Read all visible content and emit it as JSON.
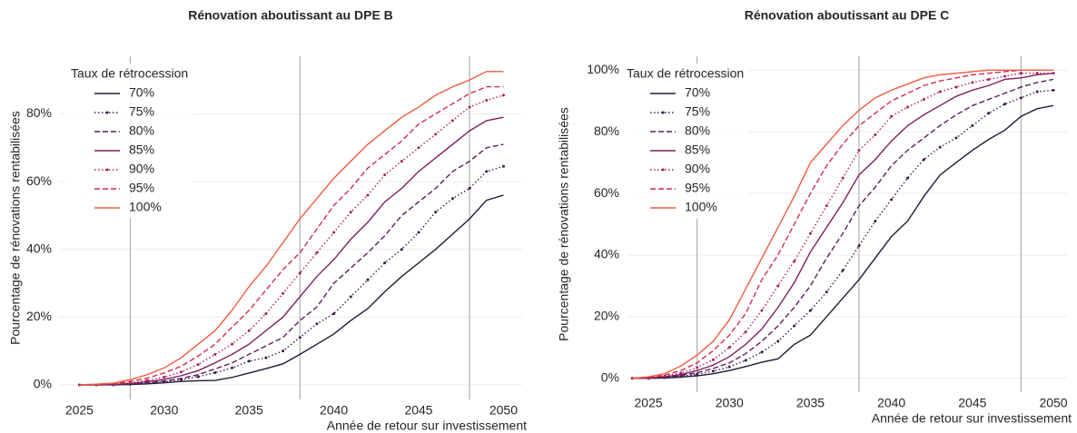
{
  "chart_data": [
    {
      "type": "line",
      "title": "Rénovation aboutissant au DPE B",
      "xlabel": "Année de retour sur investissement",
      "ylabel": "Pourcentage de rénovations rentabilisées",
      "legend_title": "Taux de rétrocession",
      "grid": true,
      "x": [
        2025,
        2026,
        2027,
        2028,
        2029,
        2030,
        2031,
        2032,
        2033,
        2034,
        2035,
        2036,
        2037,
        2038,
        2039,
        2040,
        2041,
        2042,
        2043,
        2044,
        2045,
        2046,
        2047,
        2048,
        2049,
        2050
      ],
      "xlim": [
        2023.8,
        2051.1
      ],
      "ylim": [
        -4.3,
        97
      ],
      "xticks": [
        2025,
        2030,
        2035,
        2040,
        2045,
        2050
      ],
      "yticks": [
        {
          "value": 0,
          "label": "0%"
        },
        {
          "value": 20,
          "label": "20%"
        },
        {
          "value": 40,
          "label": "40%"
        },
        {
          "value": 60,
          "label": "60%"
        },
        {
          "value": 80,
          "label": "80%"
        }
      ],
      "vlines": [
        2028,
        2038,
        2048
      ],
      "series": [
        {
          "name": "70%",
          "color": "#1f1a36",
          "style": "solid",
          "values": [
            0,
            0,
            0,
            0.1,
            0.3,
            0.6,
            1,
            1.2,
            1.3,
            2.2,
            3.5,
            4.8,
            6.2,
            9,
            12,
            15,
            19,
            22.5,
            27.5,
            32,
            36,
            40,
            44.5,
            49,
            54.5,
            56
          ]
        },
        {
          "name": "75%",
          "color": "#3c1c4d",
          "style": "dotted",
          "values": [
            0,
            0,
            0,
            0.2,
            0.5,
            0.9,
            1.5,
            2.4,
            3.6,
            5,
            7,
            8,
            10,
            14,
            18,
            21,
            26,
            31,
            36,
            40,
            45,
            51,
            55,
            58,
            63,
            64.5
          ]
        },
        {
          "name": "80%",
          "color": "#5e1d5a",
          "style": "dashed",
          "values": [
            0,
            0,
            0.1,
            0.3,
            0.6,
            1.1,
            1.9,
            3,
            4.7,
            6.5,
            9,
            11.5,
            14,
            19,
            23,
            30,
            34.5,
            39,
            44,
            50,
            54,
            58,
            63,
            66,
            70,
            71
          ]
        },
        {
          "name": "85%",
          "color": "#7e1e5e",
          "style": "solid",
          "values": [
            0,
            0,
            0.1,
            0.4,
            0.9,
            1.6,
            2.7,
            4.2,
            6.5,
            9,
            12,
            16,
            20,
            26,
            32,
            37,
            43,
            48,
            54,
            58,
            63,
            67,
            71,
            75,
            78,
            79
          ]
        },
        {
          "name": "90%",
          "color": "#a71f5b",
          "style": "dotted",
          "values": [
            0,
            0,
            0.2,
            0.6,
            1.3,
            2.3,
            3.8,
            6,
            9,
            12,
            16,
            21,
            27,
            33,
            39,
            45,
            51,
            56,
            62,
            66,
            70,
            74,
            78,
            82,
            84,
            85.5
          ]
        },
        {
          "name": "95%",
          "color": "#d02d4e",
          "style": "dashed",
          "values": [
            0,
            0.1,
            0.3,
            1,
            2,
            3.5,
            5.5,
            8.5,
            12,
            17,
            22,
            28,
            34,
            39,
            46,
            53,
            58,
            64,
            68,
            72,
            77,
            80,
            83,
            86,
            88,
            88
          ]
        },
        {
          "name": "100%",
          "color": "#ef5b40",
          "style": "solid",
          "values": [
            0,
            0.2,
            0.5,
            1.5,
            3,
            5,
            8,
            12,
            16,
            22,
            29,
            35,
            42,
            49,
            55,
            61,
            66,
            71,
            75,
            79,
            82,
            85.5,
            88,
            90,
            92.5,
            92.5
          ]
        }
      ]
    },
    {
      "type": "line",
      "title": "Rénovation aboutissant au DPE C",
      "xlabel": "Année de retour sur investissement",
      "ylabel": "Pourcentage de rénovations rentabilisées",
      "legend_title": "Taux de rétrocession",
      "grid": true,
      "x": [
        2024,
        2025,
        2026,
        2027,
        2028,
        2029,
        2030,
        2031,
        2032,
        2033,
        2034,
        2035,
        2036,
        2037,
        2038,
        2039,
        2040,
        2041,
        2042,
        2043,
        2044,
        2045,
        2046,
        2047,
        2048,
        2049,
        2050
      ],
      "xlim": [
        2023.65,
        2050.84
      ],
      "ylim": [
        -4.5,
        104.5
      ],
      "xticks": [
        2025,
        2030,
        2035,
        2040,
        2045,
        2050
      ],
      "yticks": [
        {
          "value": 0,
          "label": "0%"
        },
        {
          "value": 20,
          "label": "20%"
        },
        {
          "value": 40,
          "label": "40%"
        },
        {
          "value": 60,
          "label": "60%"
        },
        {
          "value": 80,
          "label": "80%"
        },
        {
          "value": 100,
          "label": "100%"
        }
      ],
      "vlines": [
        2028,
        2038,
        2048
      ],
      "series": [
        {
          "name": "70%",
          "color": "#1f1a36",
          "style": "solid",
          "values": [
            0,
            0,
            0.1,
            0.4,
            0.8,
            1.5,
            2.5,
            3.8,
            5.2,
            6.3,
            11,
            14,
            20,
            26,
            32,
            39,
            46,
            51,
            59,
            66,
            70,
            74,
            77.5,
            80.5,
            85,
            87.5,
            88.5
          ]
        },
        {
          "name": "75%",
          "color": "#3c1c4d",
          "style": "dotted",
          "values": [
            0,
            0,
            0.2,
            0.6,
            1.3,
            2.3,
            3.7,
            5.8,
            8.5,
            12,
            17,
            22,
            28,
            35,
            43,
            51,
            58,
            65,
            71,
            75,
            78,
            82,
            86,
            89,
            91,
            93,
            93.5
          ]
        },
        {
          "name": "80%",
          "color": "#5e1d5a",
          "style": "dashed",
          "values": [
            0,
            0.1,
            0.3,
            0.9,
            1.8,
            3.2,
            5,
            8,
            12,
            17,
            23,
            30,
            39,
            47,
            56,
            62,
            69,
            74,
            78,
            82,
            85.5,
            88.5,
            90.5,
            92.5,
            94.5,
            96,
            97
          ]
        },
        {
          "name": "85%",
          "color": "#7e1e5e",
          "style": "solid",
          "values": [
            0,
            0.1,
            0.5,
            1.2,
            2.5,
            4.3,
            7,
            11,
            16,
            23,
            31,
            41,
            49,
            57,
            66,
            71,
            77,
            82,
            85.5,
            88.5,
            91.5,
            93.5,
            95,
            97,
            97.5,
            98.5,
            99
          ]
        },
        {
          "name": "90%",
          "color": "#a71f5b",
          "style": "dotted",
          "values": [
            0,
            0.2,
            0.7,
            1.7,
            3.5,
            6,
            10,
            15,
            22,
            30,
            38,
            47,
            56,
            65,
            74,
            79,
            85,
            88,
            90.5,
            93,
            94.5,
            96,
            97,
            98,
            99,
            99,
            99
          ]
        },
        {
          "name": "95%",
          "color": "#d02d4e",
          "style": "dashed",
          "values": [
            0,
            0.3,
            1,
            2.5,
            5,
            9,
            14,
            21,
            32,
            40,
            50,
            60,
            69,
            76,
            82,
            86,
            90,
            92.5,
            95,
            96.5,
            97.5,
            98.5,
            99,
            99.5,
            100,
            100,
            100
          ]
        },
        {
          "name": "100%",
          "color": "#ef5b40",
          "style": "solid",
          "values": [
            0,
            0.5,
            1.5,
            4,
            7.5,
            12,
            19,
            29,
            39,
            49,
            59,
            70,
            76,
            82,
            87,
            91,
            93.5,
            95.5,
            97.5,
            98.5,
            99,
            99.5,
            100,
            100,
            100,
            100,
            100
          ]
        }
      ]
    }
  ]
}
